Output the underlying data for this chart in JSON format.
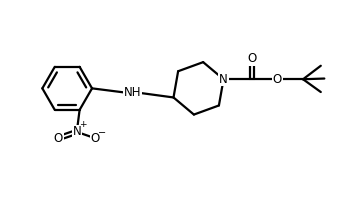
{
  "background": "#ffffff",
  "line_color": "#000000",
  "line_width": 1.6,
  "figsize": [
    3.58,
    1.98
  ],
  "dpi": 100,
  "xlim": [
    0,
    10
  ],
  "ylim": [
    0,
    5.5
  ]
}
